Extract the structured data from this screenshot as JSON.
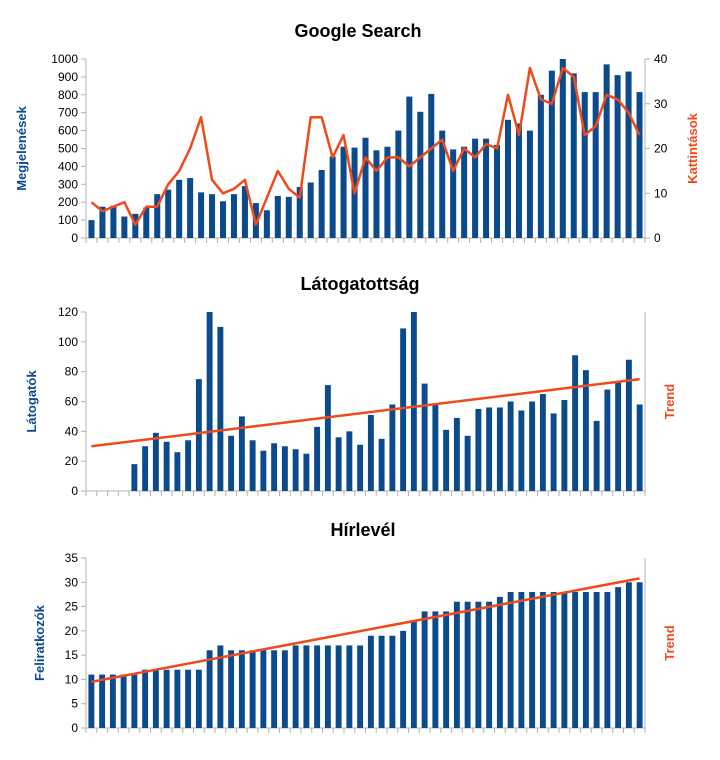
{
  "colors": {
    "bars": "#0b4a8b",
    "line": "#ef4a1c",
    "axis": "#b3b3b3",
    "grid": "#b3b3b3"
  },
  "chart_data": [
    {
      "type": "bar",
      "title": "Google Search",
      "ylabel": "Megjelenések",
      "y2label": "Kattintások",
      "ylim": [
        0,
        1000
      ],
      "yticks": [
        0,
        100,
        200,
        300,
        400,
        500,
        600,
        700,
        800,
        900,
        1000
      ],
      "y2lim": [
        0,
        40
      ],
      "y2ticks": [
        0,
        10,
        20,
        30,
        40
      ],
      "grid": false,
      "series": [
        {
          "name": "Megjelenések",
          "type": "bar",
          "axis": "left",
          "values": [
            100,
            175,
            180,
            120,
            135,
            170,
            245,
            270,
            325,
            335,
            255,
            245,
            205,
            245,
            290,
            195,
            155,
            235,
            230,
            285,
            310,
            380,
            455,
            510,
            505,
            560,
            490,
            510,
            600,
            790,
            705,
            805,
            600,
            495,
            510,
            555,
            555,
            520,
            660,
            640,
            600,
            800,
            935,
            1000,
            920,
            815,
            815,
            970,
            910,
            930,
            815
          ]
        },
        {
          "name": "Kattintások",
          "type": "line",
          "axis": "right",
          "values": [
            8,
            6,
            7,
            8,
            3,
            7,
            7,
            12,
            15,
            20,
            27,
            13,
            10,
            11,
            13,
            3,
            9,
            15,
            11,
            9,
            27,
            27,
            18,
            23,
            10,
            18,
            15,
            18,
            18,
            16,
            18,
            20,
            22,
            15,
            20,
            18,
            21,
            20,
            32,
            23,
            38,
            31,
            30,
            38,
            36,
            23,
            25,
            32,
            31,
            28,
            23
          ]
        }
      ]
    },
    {
      "type": "bar",
      "title": "Látogatottság",
      "ylabel": "Látogatók",
      "y2label": "Trend",
      "ylim": [
        0,
        120
      ],
      "yticks": [
        0,
        20,
        40,
        60,
        80,
        100,
        120
      ],
      "grid": false,
      "series": [
        {
          "name": "Látogatók",
          "type": "bar",
          "values": [
            0,
            0,
            0,
            0,
            18,
            30,
            39,
            33,
            26,
            34,
            75,
            120,
            110,
            37,
            50,
            34,
            27,
            32,
            30,
            28,
            25,
            43,
            71,
            36,
            40,
            31,
            51,
            35,
            58,
            109,
            120,
            72,
            58,
            41,
            49,
            37,
            55,
            56,
            56,
            60,
            54,
            60,
            65,
            52,
            61,
            91,
            81,
            47,
            68,
            73,
            88,
            58
          ]
        },
        {
          "name": "Trend",
          "type": "line",
          "values": [
            30,
            75
          ]
        }
      ]
    },
    {
      "type": "bar",
      "title": "Hírlevél",
      "ylabel": "Feliratkozók",
      "y2label": "Trend",
      "ylim": [
        0,
        35
      ],
      "yticks": [
        0,
        5,
        10,
        15,
        20,
        25,
        30,
        35
      ],
      "grid": false,
      "series": [
        {
          "name": "Feliratkozók",
          "type": "bar",
          "values": [
            11,
            11,
            11,
            11,
            11,
            12,
            12,
            12,
            12,
            12,
            12,
            16,
            17,
            16,
            16,
            16,
            16,
            16,
            16,
            17,
            17,
            17,
            17,
            17,
            17,
            17,
            19,
            19,
            19,
            20,
            22,
            24,
            24,
            24,
            26,
            26,
            26,
            26,
            27,
            28,
            28,
            28,
            28,
            28,
            28,
            28,
            28,
            28,
            28,
            29,
            30,
            30
          ]
        },
        {
          "name": "Trend",
          "type": "line",
          "values": [
            9.5,
            30.8
          ]
        }
      ]
    }
  ]
}
